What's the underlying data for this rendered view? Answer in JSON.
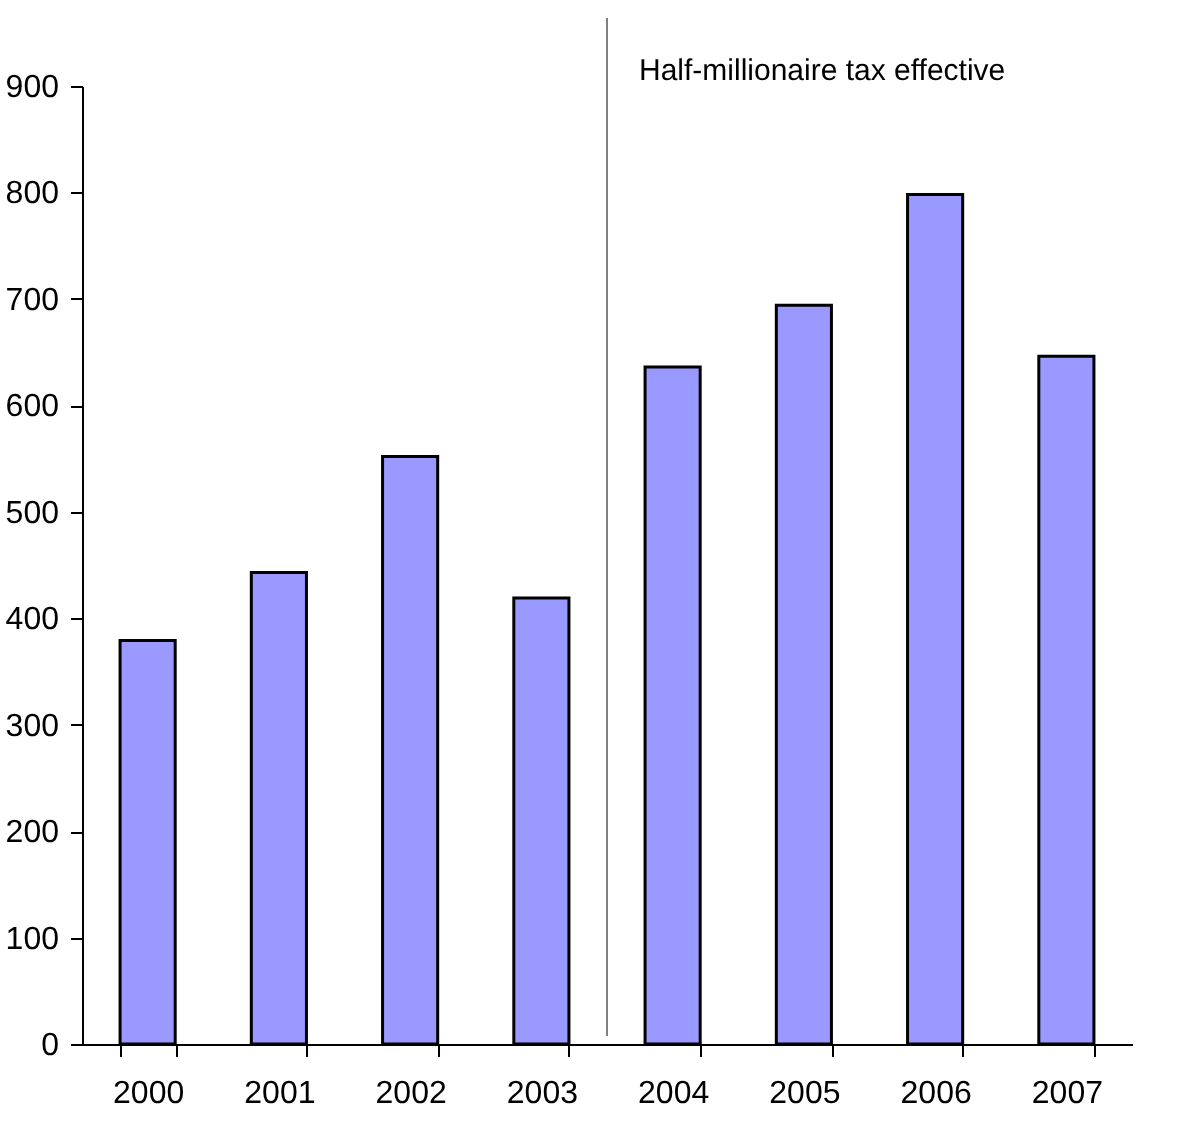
{
  "chart_data": {
    "type": "bar",
    "categories": [
      "2000",
      "2001",
      "2002",
      "2003",
      "2004",
      "2005",
      "2006",
      "2007"
    ],
    "values": [
      379,
      443,
      552,
      419,
      636,
      694,
      798,
      646
    ],
    "color": "#9999ff",
    "ylim": [
      0,
      900
    ],
    "yticks": [
      0,
      100,
      200,
      300,
      400,
      500,
      600,
      700,
      800,
      900
    ],
    "annotations": [
      "Half-millionaire tax effective"
    ],
    "grid": false
  }
}
